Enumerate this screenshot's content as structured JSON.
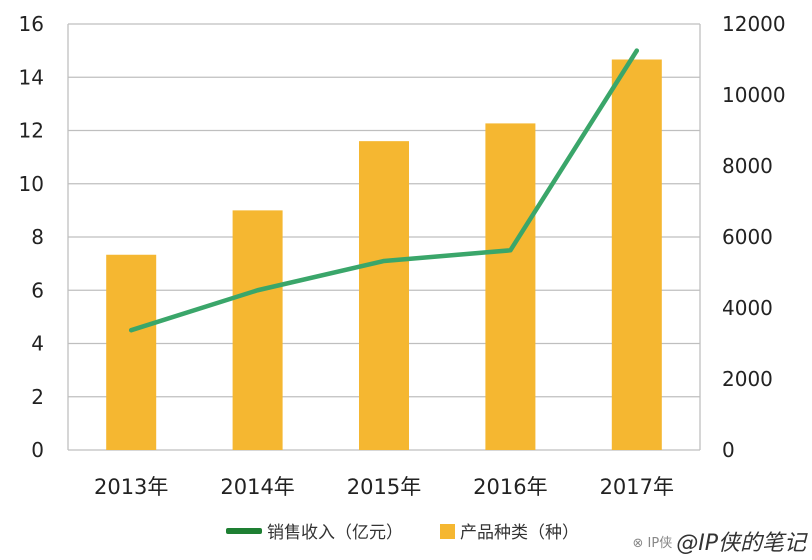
{
  "chart_data": {
    "type": "bar+line",
    "categories": [
      "2013年",
      "2014年",
      "2015年",
      "2016年",
      "2017年"
    ],
    "series": [
      {
        "name": "产品种类（种）",
        "type": "bar",
        "axis": "right",
        "values": [
          5500,
          6750,
          8700,
          9200,
          11000
        ],
        "color": "#F5B731"
      },
      {
        "name": "销售收入（亿元）",
        "type": "line",
        "axis": "left",
        "values": [
          4.5,
          6.0,
          7.1,
          7.5,
          15.0
        ],
        "color": "#3AA66A"
      }
    ],
    "left_axis": {
      "ylim": [
        0,
        16
      ],
      "ticks": [
        "0",
        "2",
        "4",
        "6",
        "8",
        "10",
        "12",
        "14",
        "16"
      ]
    },
    "right_axis": {
      "ylim": [
        0,
        12000
      ],
      "ticks": [
        "0",
        "2000",
        "4000",
        "6000",
        "8000",
        "10000",
        "12000"
      ]
    },
    "grid": true,
    "legend": "bottom",
    "legend_line_color": "#1E7F32"
  },
  "watermark": {
    "text": "@IP侠的笔记",
    "small": "⊗ IP侠"
  }
}
